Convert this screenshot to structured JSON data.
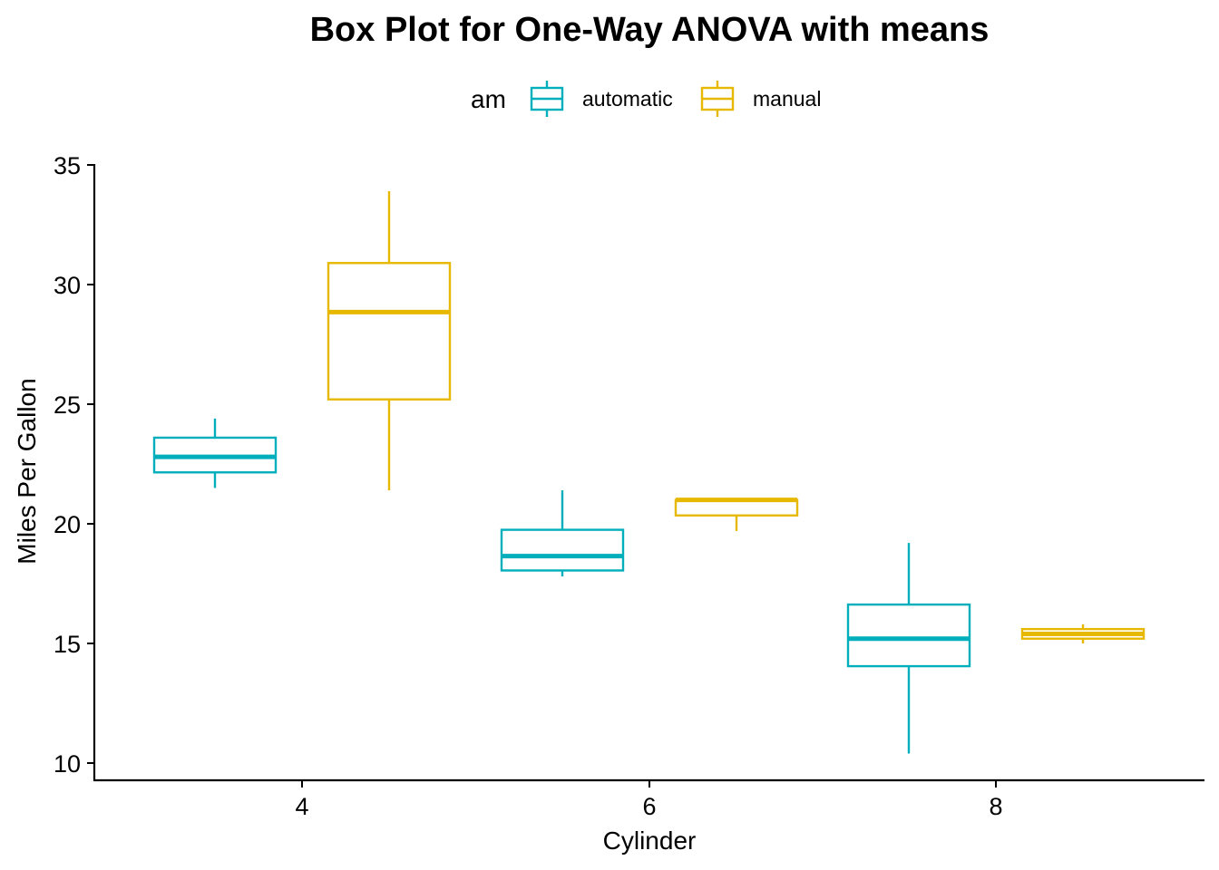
{
  "chart_data": {
    "type": "box",
    "title": "Box Plot for One-Way ANOVA with means",
    "xlabel": "Cylinder",
    "ylabel": "Miles Per Gallon",
    "ylim": [
      9.3,
      35
    ],
    "y_ticks": [
      10,
      15,
      20,
      25,
      30,
      35
    ],
    "x_ticks": [
      "4",
      "6",
      "8"
    ],
    "categories": [
      "4",
      "6",
      "8"
    ],
    "legend": {
      "title": "am",
      "position": "top",
      "entries": [
        "automatic",
        "manual"
      ]
    },
    "colors": {
      "automatic": "#00AFBB",
      "manual": "#E7B800"
    },
    "series": [
      {
        "name": "automatic",
        "boxes": [
          {
            "category": "4",
            "min": 21.5,
            "q1": 22.15,
            "median": 22.8,
            "q3": 23.6,
            "max": 24.4
          },
          {
            "category": "6",
            "min": 17.8,
            "q1": 18.05,
            "median": 18.65,
            "q3": 19.75,
            "max": 21.4
          },
          {
            "category": "8",
            "min": 10.4,
            "q1": 14.05,
            "median": 15.2,
            "q3": 16.625,
            "max": 19.2
          }
        ]
      },
      {
        "name": "manual",
        "boxes": [
          {
            "category": "4",
            "min": 21.4,
            "q1": 25.2,
            "median": 28.85,
            "q3": 30.9,
            "max": 33.9
          },
          {
            "category": "6",
            "min": 19.7,
            "q1": 20.35,
            "median": 21.0,
            "q3": 21.0,
            "max": 21.0
          },
          {
            "category": "8",
            "min": 15.0,
            "q1": 15.2,
            "median": 15.4,
            "q3": 15.6,
            "max": 15.8
          }
        ]
      }
    ]
  }
}
